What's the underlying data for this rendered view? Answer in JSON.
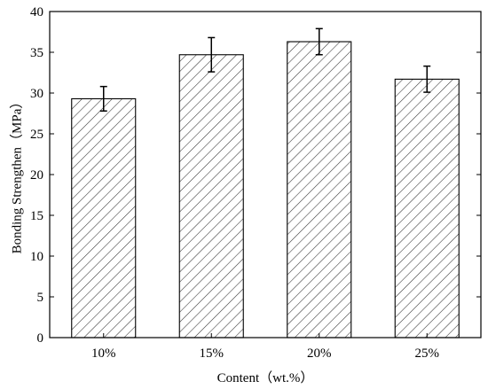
{
  "chart_data": {
    "type": "bar",
    "xlabel": "Content（wt.%）",
    "ylabel": "Bonding Strengthen（MPa）",
    "ylim": [
      0,
      40
    ],
    "yticks": [
      0,
      5,
      10,
      15,
      20,
      25,
      30,
      35,
      40
    ],
    "categories": [
      "10%",
      "15%",
      "20%",
      "25%"
    ],
    "series": [
      {
        "values": [
          29.3,
          34.7,
          36.3,
          31.7
        ],
        "errors": [
          1.5,
          2.1,
          1.6,
          1.6
        ]
      }
    ],
    "grid": false,
    "legend": "none",
    "bar_fill": "hatched-diagonal",
    "colors": {
      "bar_stroke": "#000000",
      "hatch": "#333333",
      "axis": "#000000"
    }
  }
}
